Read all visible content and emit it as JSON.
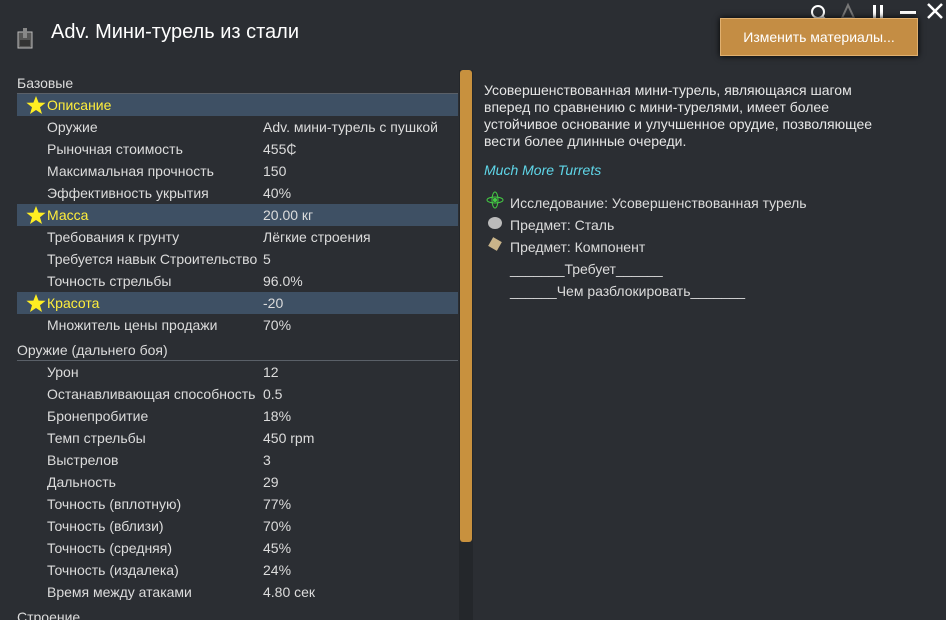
{
  "header": {
    "title": "Adv. Мини-турель из стали",
    "button": "Изменить материалы..."
  },
  "stats": {
    "sections": [
      {
        "title": "Базовые",
        "rows": [
          {
            "label": "Описание",
            "highlight": true
          },
          {
            "label": "Оружие",
            "value": "Adv. мини-турель с пушкой"
          },
          {
            "label": "Рыночная стоимость",
            "value": "455₵"
          },
          {
            "label": "Максимальная прочность",
            "value": "150"
          },
          {
            "label": "Эффективность укрытия",
            "value": "40%"
          },
          {
            "label": "Масса",
            "value": "20.00 кг",
            "highlight": true
          },
          {
            "label": "Требования к грунту",
            "value": "Лёгкие строения"
          },
          {
            "label": "Требуется навык Строительство",
            "value": "5"
          },
          {
            "label": "Точность стрельбы",
            "value": "96.0%"
          },
          {
            "label": "Красота",
            "value": "-20",
            "highlight": true
          },
          {
            "label": "Множитель цены продажи",
            "value": "70%"
          }
        ]
      },
      {
        "title": "Оружие (дальнего боя)",
        "rows": [
          {
            "label": "Урон",
            "value": "12"
          },
          {
            "label": "Останавливающая способность",
            "value": "0.5"
          },
          {
            "label": "Бронепробитие",
            "value": "18%"
          },
          {
            "label": "Темп стрельбы",
            "value": "450 rpm"
          },
          {
            "label": "Выстрелов",
            "value": "3"
          },
          {
            "label": "Дальность",
            "value": "29"
          },
          {
            "label": "Точность (вплотную)",
            "value": "77%"
          },
          {
            "label": "Точность (вблизи)",
            "value": "70%"
          },
          {
            "label": "Точность (средняя)",
            "value": "45%"
          },
          {
            "label": "Точность (издалека)",
            "value": "24%"
          },
          {
            "label": "Время между атаками",
            "value": "4.80 сек"
          }
        ]
      },
      {
        "title": "Строение"
      }
    ]
  },
  "details": {
    "description": "Усовершенствованная мини-турель, являющаяся шагом вперед по сравнению с мини-турелями, имеет более устойчивое основание и улучшенное орудие, позволяющее вести более длинные очереди.",
    "mod": "Much More Turrets",
    "links": [
      "Исследование: Усовершенствованная турель",
      "Предмет: Сталь",
      "Предмет: Компонент"
    ],
    "required_by": "_______Требует______",
    "unlocks": "______Чем разблокировать_______"
  }
}
